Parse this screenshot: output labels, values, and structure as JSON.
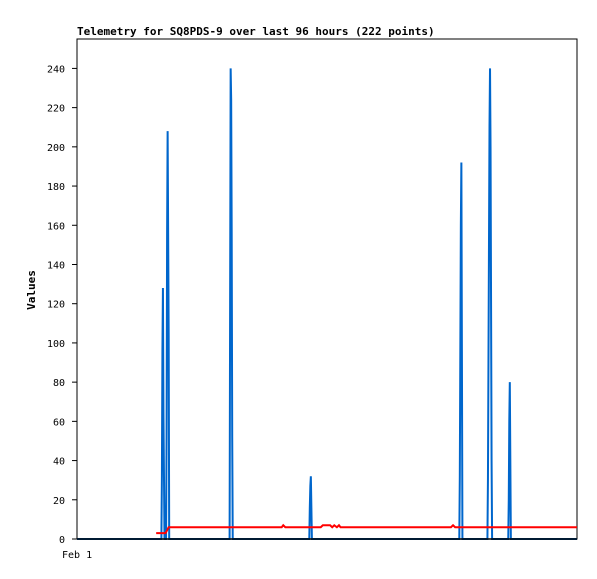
{
  "chart_data": {
    "type": "line",
    "title": "Telemetry for SQ8PDS-9 over last 96 hours (222 points)",
    "xlabel": "",
    "ylabel": "Values",
    "x_tick_labels": [
      "Feb 1"
    ],
    "yticks": [
      0,
      20,
      40,
      60,
      80,
      100,
      120,
      140,
      160,
      180,
      200,
      220,
      240
    ],
    "ylim": [
      0,
      255
    ],
    "xlim": [
      0,
      96
    ],
    "grid": false,
    "legend": "none",
    "series": [
      {
        "color": "#0066cc",
        "points": [
          [
            0,
            0
          ],
          [
            16.2,
            0
          ],
          [
            16.3,
            32
          ],
          [
            16.4,
            96
          ],
          [
            16.5,
            128
          ],
          [
            16.6,
            64
          ],
          [
            16.7,
            32
          ],
          [
            16.8,
            0
          ],
          [
            17.1,
            0
          ],
          [
            17.2,
            52
          ],
          [
            17.3,
            156
          ],
          [
            17.4,
            208
          ],
          [
            17.5,
            156
          ],
          [
            17.6,
            104
          ],
          [
            17.7,
            0
          ],
          [
            29.3,
            0
          ],
          [
            29.4,
            120
          ],
          [
            29.5,
            240
          ],
          [
            29.6,
            224
          ],
          [
            29.7,
            156
          ],
          [
            29.8,
            52
          ],
          [
            29.9,
            0
          ],
          [
            44.6,
            0
          ],
          [
            44.7,
            16
          ],
          [
            44.8,
            27
          ],
          [
            44.9,
            32
          ],
          [
            45.0,
            16
          ],
          [
            45.1,
            0
          ],
          [
            73.4,
            0
          ],
          [
            73.5,
            32
          ],
          [
            73.6,
            96
          ],
          [
            73.7,
            160
          ],
          [
            73.8,
            192
          ],
          [
            73.9,
            96
          ],
          [
            74.0,
            0
          ],
          [
            78.8,
            0
          ],
          [
            78.9,
            30
          ],
          [
            79.0,
            90
          ],
          [
            79.1,
            150
          ],
          [
            79.2,
            210
          ],
          [
            79.3,
            240
          ],
          [
            79.4,
            200
          ],
          [
            79.5,
            120
          ],
          [
            79.6,
            40
          ],
          [
            79.7,
            0
          ],
          [
            82.8,
            0
          ],
          [
            82.9,
            20
          ],
          [
            83.0,
            60
          ],
          [
            83.1,
            80
          ],
          [
            83.2,
            40
          ],
          [
            83.3,
            0
          ],
          [
            96,
            0
          ]
        ]
      },
      {
        "color": "#ff0000",
        "points": [
          [
            15.2,
            3
          ],
          [
            17.0,
            3
          ],
          [
            17.6,
            6
          ],
          [
            39.3,
            6
          ],
          [
            39.6,
            7
          ],
          [
            40.0,
            6
          ],
          [
            46.8,
            6
          ],
          [
            47.2,
            7
          ],
          [
            48.6,
            7
          ],
          [
            49.0,
            6
          ],
          [
            49.4,
            7
          ],
          [
            49.9,
            6
          ],
          [
            50.3,
            7
          ],
          [
            50.6,
            6
          ],
          [
            71.8,
            6
          ],
          [
            72.2,
            7
          ],
          [
            72.6,
            6
          ],
          [
            96,
            6
          ]
        ]
      },
      {
        "color": "#000000",
        "points": [
          [
            0,
            0
          ],
          [
            96,
            0
          ]
        ]
      }
    ]
  }
}
